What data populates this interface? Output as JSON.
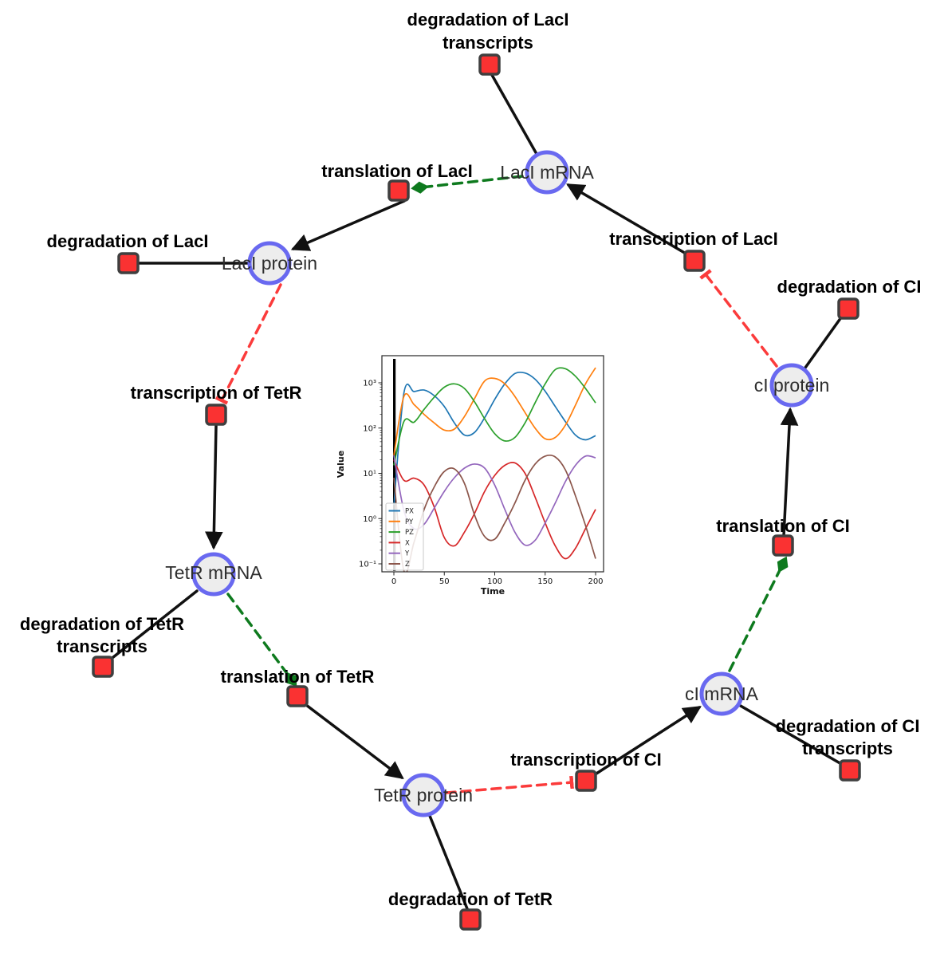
{
  "figure": {
    "background": "#ffffff",
    "description_colors": {
      "species_fill": "#ededed",
      "species_stroke": "#6969f0",
      "reaction_fill": "#fa3232",
      "reaction_stroke": "#3f3f3f",
      "edge_black": "#111111",
      "edge_catalysis_green": "#0e7a1e",
      "edge_inhibition_red": "#fb3b3b"
    }
  },
  "diagram": {
    "species": [
      {
        "id": "laci-mrna",
        "label": "LacI mRNA"
      },
      {
        "id": "laci-protein",
        "label": "LacI protein"
      },
      {
        "id": "tetr-mrna",
        "label": "TetR mRNA"
      },
      {
        "id": "tetr-protein",
        "label": "TetR protein"
      },
      {
        "id": "ci-mrna",
        "label": "cI mRNA"
      },
      {
        "id": "ci-protein",
        "label": "cI protein"
      }
    ],
    "reactions": [
      {
        "id": "degradation-laci-transcripts",
        "lines": [
          "degradation of LacI",
          "transcripts"
        ]
      },
      {
        "id": "translation-laci",
        "lines": [
          "translation of LacI"
        ]
      },
      {
        "id": "degradation-laci",
        "lines": [
          "degradation of LacI"
        ]
      },
      {
        "id": "transcription-tetr",
        "lines": [
          "transcription of TetR"
        ]
      },
      {
        "id": "degradation-tetr-transcripts",
        "lines": [
          "degradation of TetR",
          "transcripts"
        ]
      },
      {
        "id": "translation-tetr",
        "lines": [
          "translation of TetR"
        ]
      },
      {
        "id": "degradation-tetr",
        "lines": [
          "degradation of TetR"
        ]
      },
      {
        "id": "transcription-ci",
        "lines": [
          "transcription of CI"
        ]
      },
      {
        "id": "degradation-ci-transcripts",
        "lines": [
          "degradation of CI",
          "transcripts"
        ]
      },
      {
        "id": "translation-ci",
        "lines": [
          "translation of CI"
        ]
      },
      {
        "id": "degradation-ci",
        "lines": [
          "degradation of CI"
        ]
      },
      {
        "id": "transcription-laci",
        "lines": [
          "transcription of LacI"
        ]
      }
    ],
    "edges": [
      {
        "from": "laci-mrna",
        "to": "degradation-laci-transcripts",
        "type": "consumption"
      },
      {
        "from": "translation-laci",
        "to": "laci-protein",
        "type": "production"
      },
      {
        "from": "laci-mrna",
        "to": "translation-laci",
        "type": "catalysis"
      },
      {
        "from": "transcription-laci",
        "to": "laci-mrna",
        "type": "production"
      },
      {
        "from": "laci-protein",
        "to": "degradation-laci",
        "type": "consumption"
      },
      {
        "from": "laci-protein",
        "to": "transcription-tetr",
        "type": "inhibition"
      },
      {
        "from": "transcription-tetr",
        "to": "tetr-mrna",
        "type": "production"
      },
      {
        "from": "tetr-mrna",
        "to": "degradation-tetr-transcripts",
        "type": "consumption"
      },
      {
        "from": "tetr-mrna",
        "to": "translation-tetr",
        "type": "catalysis"
      },
      {
        "from": "translation-tetr",
        "to": "tetr-protein",
        "type": "production"
      },
      {
        "from": "tetr-protein",
        "to": "degradation-tetr",
        "type": "consumption"
      },
      {
        "from": "tetr-protein",
        "to": "transcription-ci",
        "type": "inhibition"
      },
      {
        "from": "transcription-ci",
        "to": "ci-mrna",
        "type": "production"
      },
      {
        "from": "ci-mrna",
        "to": "degradation-ci-transcripts",
        "type": "consumption"
      },
      {
        "from": "ci-mrna",
        "to": "translation-ci",
        "type": "catalysis"
      },
      {
        "from": "translation-ci",
        "to": "ci-protein",
        "type": "production"
      },
      {
        "from": "ci-protein",
        "to": "degradation-ci",
        "type": "consumption"
      },
      {
        "from": "ci-protein",
        "to": "transcription-laci",
        "type": "inhibition"
      }
    ]
  },
  "chart_data": {
    "type": "line",
    "title": "",
    "xlabel": "Time",
    "ylabel": "Value",
    "ylog": true,
    "xlim": [
      -12,
      210
    ],
    "ylim_exponents": [
      -1.2,
      3.6
    ],
    "x_ticks": [
      0,
      50,
      100,
      150,
      200
    ],
    "y_ticks": [
      "10⁻¹",
      "10⁰",
      "10¹",
      "10²",
      "10³"
    ],
    "y_tick_exponents": [
      -1,
      0,
      1,
      2,
      3
    ],
    "grid": false,
    "legend_position": "lower left",
    "vline_x": 0,
    "x": [
      0,
      10,
      20,
      30,
      40,
      50,
      60,
      70,
      80,
      90,
      100,
      110,
      120,
      130,
      140,
      150,
      160,
      170,
      180,
      190,
      200
    ],
    "series": [
      {
        "name": "PX",
        "color": "#1f77b4",
        "values": [
          2,
          600,
          640,
          690,
          520,
          300,
          130,
          70,
          80,
          170,
          430,
          950,
          1600,
          1650,
          1200,
          650,
          300,
          140,
          70,
          55,
          68
        ]
      },
      {
        "name": "PY",
        "color": "#ff7f0e",
        "values": [
          25,
          500,
          330,
          200,
          130,
          90,
          95,
          180,
          450,
          1100,
          1250,
          950,
          500,
          220,
          100,
          58,
          62,
          115,
          320,
          950,
          2150
        ]
      },
      {
        "name": "PZ",
        "color": "#2ca02c",
        "values": [
          15,
          140,
          135,
          260,
          480,
          800,
          950,
          750,
          380,
          160,
          75,
          52,
          62,
          130,
          360,
          950,
          1950,
          2050,
          1400,
          750,
          360
        ]
      },
      {
        "name": "X",
        "color": "#d62728",
        "values": [
          20,
          7,
          7.8,
          5.5,
          1.8,
          0.38,
          0.25,
          0.5,
          1.3,
          4,
          9,
          15,
          17,
          10,
          3,
          0.8,
          0.25,
          0.13,
          0.22,
          0.6,
          1.6
        ]
      },
      {
        "name": "Y",
        "color": "#9467bd",
        "values": [
          25,
          1.5,
          0.6,
          0.75,
          1.7,
          4,
          8,
          13,
          16,
          13,
          5.5,
          1.6,
          0.5,
          0.26,
          0.33,
          0.8,
          2.2,
          6.5,
          15,
          24,
          22
        ]
      },
      {
        "name": "Z",
        "color": "#8c564b",
        "values": [
          8,
          0.07,
          0.3,
          1.6,
          5,
          11,
          12.5,
          6,
          1.2,
          0.4,
          0.35,
          0.8,
          2.2,
          7,
          16,
          24,
          23,
          12,
          3.2,
          0.7,
          0.13
        ]
      }
    ]
  }
}
